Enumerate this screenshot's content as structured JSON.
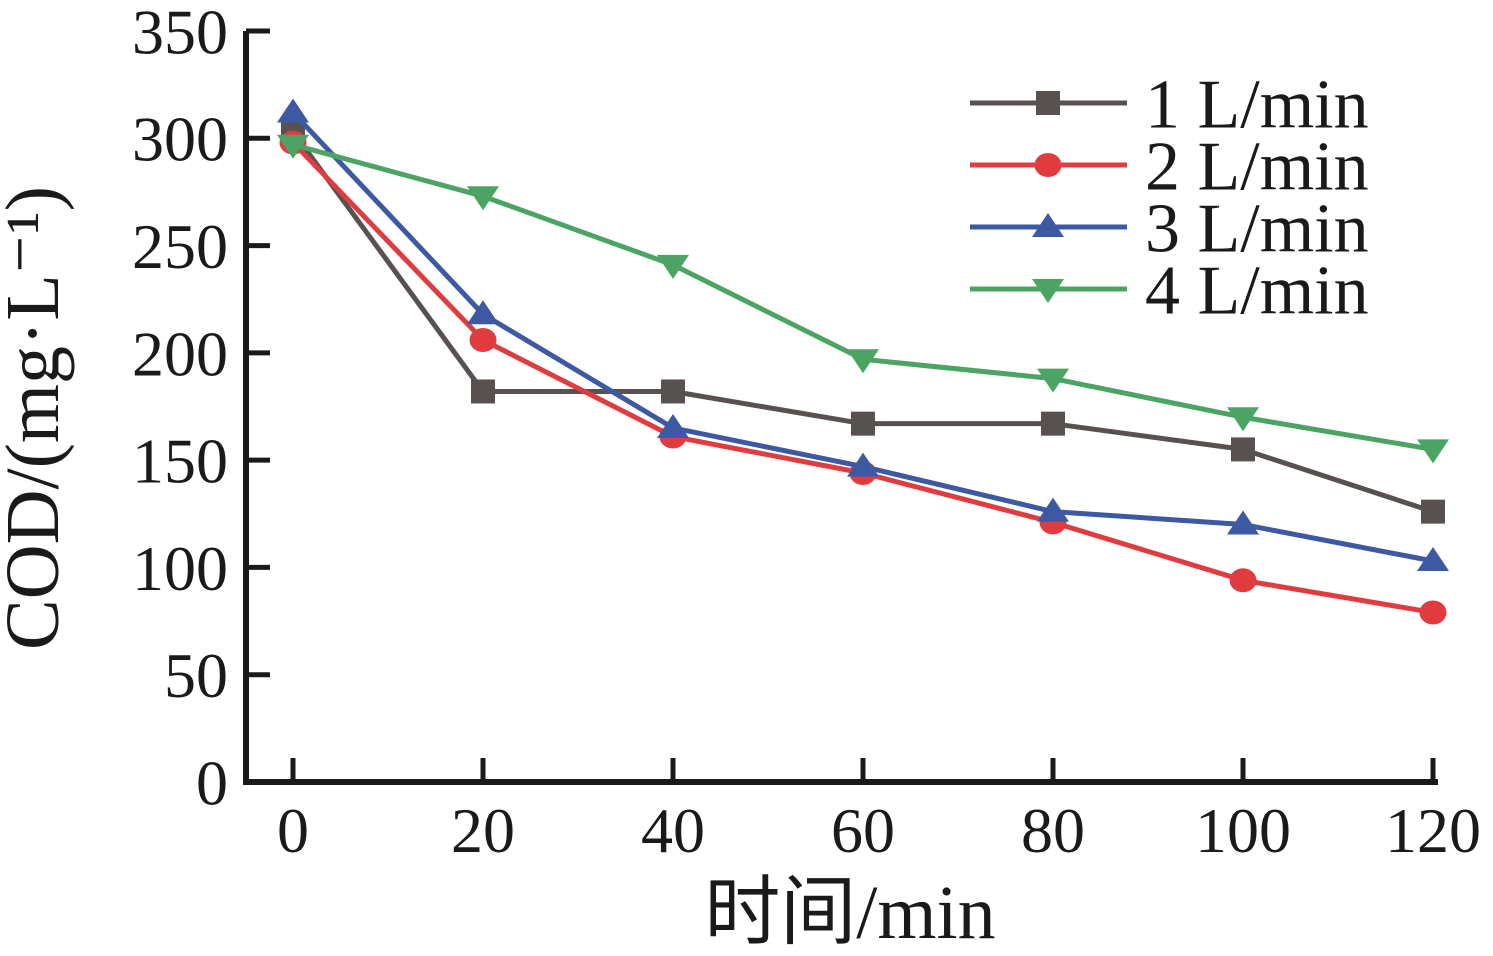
{
  "chart_data": {
    "type": "line",
    "title": "",
    "xlabel": "时间/min",
    "ylabel": "COD/(mg·L⁻¹)",
    "xlim": [
      -5,
      120.5
    ],
    "ylim": [
      0,
      350
    ],
    "xticks": [
      0,
      20,
      40,
      60,
      80,
      100,
      120
    ],
    "yticks": [
      0,
      50,
      100,
      150,
      200,
      250,
      300,
      350
    ],
    "grid": false,
    "legend_position": "top-right",
    "x": [
      0,
      20,
      40,
      60,
      80,
      100,
      120
    ],
    "series": [
      {
        "name": "1 L/min",
        "marker": "square",
        "color": "#575150",
        "values": [
          303,
          182,
          182,
          167,
          167,
          155,
          126
        ]
      },
      {
        "name": "2 L/min",
        "marker": "circle",
        "color": "#E03C40",
        "values": [
          298,
          206,
          161,
          144,
          121,
          94,
          79
        ]
      },
      {
        "name": "3 L/min",
        "marker": "triangle-up",
        "color": "#3D59A4",
        "values": [
          312,
          218,
          165,
          147,
          126,
          120,
          103
        ]
      },
      {
        "name": "4 L/min",
        "marker": "triangle-down",
        "color": "#4BA463",
        "values": [
          297,
          273,
          241,
          197,
          188,
          170,
          155
        ]
      }
    ],
    "axis_color": "#1a1a1a"
  }
}
